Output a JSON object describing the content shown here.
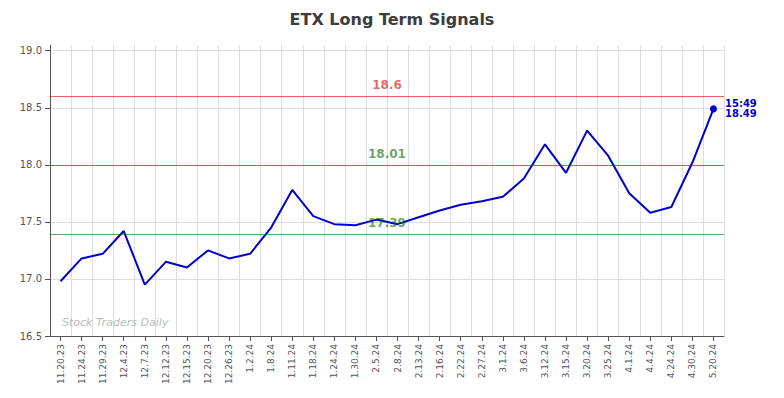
{
  "chart_data": {
    "type": "line",
    "title": "ETX Long Term Signals",
    "categories": [
      "11.20.23",
      "11.24.23",
      "11.29.23",
      "12.4.23",
      "12.7.23",
      "12.12.23",
      "12.15.23",
      "12.20.23",
      "12.26.23",
      "1.2.24",
      "1.8.24",
      "1.11.24",
      "1.18.24",
      "1.24.24",
      "1.30.24",
      "2.5.24",
      "2.8.24",
      "2.13.24",
      "2.16.24",
      "2.22.24",
      "2.27.24",
      "3.1.24",
      "3.6.24",
      "3.12.24",
      "3.15.24",
      "3.20.24",
      "3.25.24",
      "4.1.24",
      "4.4.24",
      "4.24.24",
      "4.30.24",
      "5.20.24"
    ],
    "values": [
      16.98,
      17.18,
      17.22,
      17.42,
      16.95,
      17.15,
      17.1,
      17.25,
      17.18,
      17.22,
      17.45,
      17.78,
      17.55,
      17.48,
      17.47,
      17.52,
      17.48,
      17.54,
      17.6,
      17.65,
      17.68,
      17.72,
      17.88,
      18.18,
      17.93,
      18.3,
      18.08,
      17.75,
      17.58,
      17.63,
      18.02,
      18.49
    ],
    "color": "#0000cc",
    "ylim": [
      16.5,
      19.05
    ],
    "yticks": [
      16.5,
      {
        "value": 17.0,
        "label": "17.0"
      },
      17.5,
      {
        "value": 18.0,
        "label": "18.0"
      },
      18.5,
      {
        "value": 19.0,
        "label": "19.0"
      }
    ],
    "grid": true,
    "hlines": [
      {
        "value": 18.6,
        "label": "18.6",
        "color": "#cc0000"
      },
      {
        "value": 18.0,
        "label": "18.01",
        "color": "#006600"
      },
      {
        "value": 17.39,
        "label": "17.39",
        "color": "#006600"
      }
    ],
    "last_point": {
      "label": "15:49",
      "value": 18.49
    },
    "watermark": "Stock Traders Daily"
  }
}
